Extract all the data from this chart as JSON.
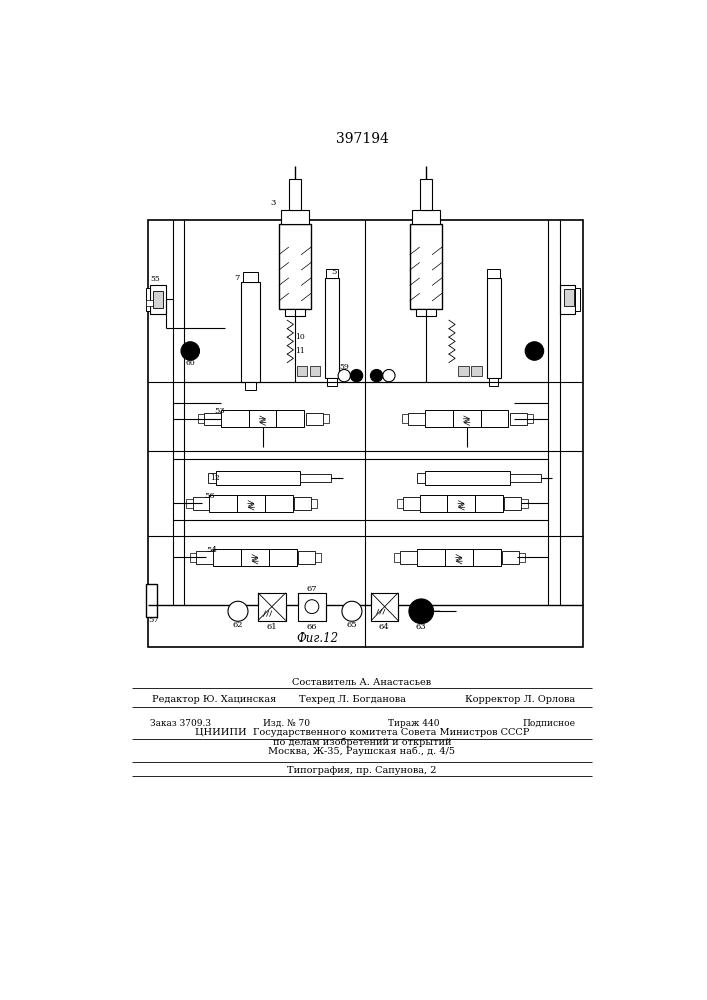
{
  "title": "397194",
  "fig_caption": "Фиг.12",
  "background_color": "#ffffff",
  "figsize": [
    7.07,
    10.0
  ],
  "dpi": 100,
  "footer": {
    "line1_center": "Составитель А. Анастасьев",
    "line2_left": "Редактор Ю. Хацинская",
    "line2_center": "Техред Л. Богданова",
    "line2_right": "Корректор Л. Орлова",
    "line3_left": "Заказ 3709.3",
    "line3_c1": "Изд. № 70",
    "line3_c2": "Тираж 440",
    "line3_right": "Подписное",
    "line4": "ЦНИИПИ  Государственного комитета Совета Министров СССР",
    "line5": "по делам изобретений и открытий",
    "line6": "Москва, Ж-35, Раушская наб., д. 4/5",
    "line7": "Типография, пр. Сапунова, 2"
  }
}
